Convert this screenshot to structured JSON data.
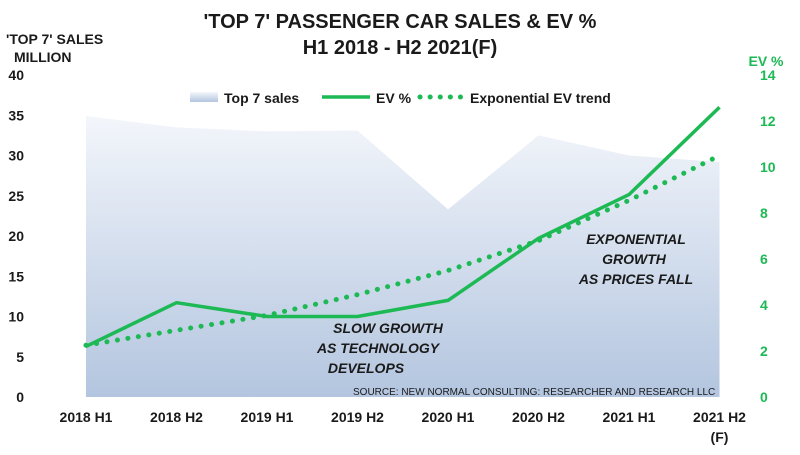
{
  "chart_data": {
    "type": "area+line",
    "title_lines": [
      "'TOP 7' PASSENGER CAR SALES & EV %",
      "H1 2018 - H2 2021(F)"
    ],
    "ylabel_left_lines": [
      "'TOP 7' SALES",
      "MILLION"
    ],
    "ylabel_right": "EV %",
    "categories": [
      "2018 H1",
      "2018 H2",
      "2019 H1",
      "2019 H2",
      "2020 H1",
      "2020 H2",
      "2021 H1",
      "2021 H2"
    ],
    "category_second_lines": [
      "",
      "",
      "",
      "",
      "",
      "",
      "",
      "(F)"
    ],
    "ylim_left": [
      0,
      40
    ],
    "ylim_right": [
      0,
      14
    ],
    "yticks_left": [
      "0",
      "5",
      "10",
      "15",
      "20",
      "25",
      "30",
      "35",
      "40"
    ],
    "yticks_right": [
      "0",
      "2",
      "4",
      "6",
      "8",
      "10",
      "12",
      "14"
    ],
    "series": [
      {
        "name": "Top 7 sales",
        "kind": "area",
        "axis": "left",
        "values": [
          34.9,
          33.5,
          33.0,
          33.1,
          23.3,
          32.5,
          30.0,
          29.2
        ],
        "color": "#b8c8e0"
      },
      {
        "name": "EV %",
        "kind": "line",
        "axis": "right",
        "values": [
          2.2,
          4.1,
          3.5,
          3.5,
          4.2,
          6.9,
          8.8,
          12.6
        ],
        "color": "#1db954"
      },
      {
        "name": "Exponential EV trend",
        "kind": "dotted",
        "axis": "right",
        "values": [
          2.25,
          2.9,
          3.55,
          4.45,
          5.5,
          6.8,
          8.55,
          10.5
        ],
        "color": "#1db954"
      }
    ],
    "annotations": [
      {
        "lines": [
          "SLOW GROWTH",
          "AS TECHNOLOGY",
          "DEVELOPS"
        ]
      },
      {
        "lines": [
          "EXPONENTIAL",
          "GROWTH",
          "AS PRICES FALL"
        ]
      }
    ],
    "source": "SOURCE: NEW NORMAL CONSULTING: RESEARCHER AND RESEARCH LLC",
    "legend_position": "top",
    "grid": false
  }
}
